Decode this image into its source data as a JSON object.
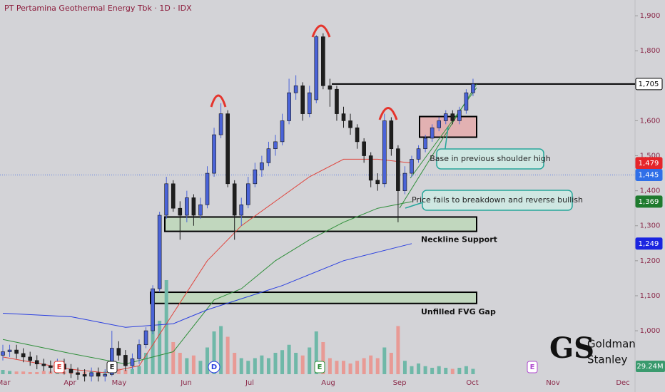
{
  "chart_data": {
    "type": "candlestick",
    "title": "PT Pertamina Geothermal Energy Tbk · 1D · IDX",
    "x_labels": [
      "Mar",
      "Apr",
      "May",
      "Jun",
      "Jul",
      "Aug",
      "Sep",
      "Oct",
      "Nov",
      "Dec"
    ],
    "ylim": [
      825,
      1945
    ],
    "yticks": [
      {
        "value": 1000,
        "label": "1,000"
      },
      {
        "value": 1100,
        "label": "1,100"
      },
      {
        "value": 1200,
        "label": "1,200"
      },
      {
        "value": 1300,
        "label": "1,300"
      },
      {
        "value": 1400,
        "label": "1,400"
      },
      {
        "value": 1500,
        "label": "1,500"
      },
      {
        "value": 1600,
        "label": "1,600"
      },
      {
        "value": 1700,
        "label": "1,700"
      },
      {
        "value": 1800,
        "label": "1,800"
      },
      {
        "value": 1900,
        "label": "1,900"
      }
    ],
    "up_color": "#4a63d8",
    "down_color": "#1e1e1e",
    "open": [
      930,
      940,
      945,
      935,
      925,
      915,
      905,
      900,
      895,
      905,
      890,
      880,
      875,
      870,
      880,
      870,
      875,
      950,
      930,
      900,
      920,
      960,
      1000,
      1120,
      1330,
      1420,
      1350,
      1330,
      1380,
      1330,
      1360,
      1450,
      1560,
      1620,
      1420,
      1330,
      1360,
      1420,
      1460,
      1480,
      1520,
      1540,
      1600,
      1680,
      1700,
      1620,
      1660,
      1840,
      1700,
      1690,
      1620,
      1600,
      1580,
      1540,
      1500,
      1430,
      1420,
      1600,
      1520,
      1400,
      1450,
      1490,
      1520,
      1550,
      1580,
      1600,
      1620,
      1600,
      1630,
      1680
    ],
    "high": [
      960,
      960,
      960,
      950,
      940,
      930,
      920,
      915,
      920,
      920,
      905,
      895,
      890,
      895,
      895,
      890,
      1000,
      970,
      945,
      935,
      975,
      1010,
      1130,
      1340,
      1440,
      1430,
      1370,
      1400,
      1390,
      1380,
      1470,
      1580,
      1650,
      1630,
      1430,
      1380,
      1440,
      1480,
      1500,
      1540,
      1560,
      1620,
      1720,
      1730,
      1710,
      1700,
      1845,
      1850,
      1720,
      1700,
      1640,
      1620,
      1590,
      1550,
      1510,
      1450,
      1620,
      1610,
      1530,
      1470,
      1500,
      1530,
      1560,
      1590,
      1610,
      1630,
      1630,
      1640,
      1690,
      1720
    ],
    "low": [
      915,
      925,
      920,
      910,
      900,
      890,
      885,
      880,
      880,
      875,
      865,
      860,
      855,
      855,
      855,
      855,
      870,
      915,
      885,
      890,
      905,
      950,
      990,
      1110,
      1320,
      1340,
      1260,
      1310,
      1300,
      1320,
      1350,
      1440,
      1550,
      1410,
      1260,
      1300,
      1350,
      1410,
      1440,
      1470,
      1500,
      1530,
      1590,
      1660,
      1600,
      1610,
      1650,
      1690,
      1640,
      1600,
      1580,
      1560,
      1520,
      1480,
      1410,
      1400,
      1410,
      1500,
      1310,
      1390,
      1440,
      1480,
      1510,
      1540,
      1570,
      1590,
      1590,
      1590,
      1620,
      1670
    ],
    "close": [
      940,
      945,
      935,
      925,
      915,
      905,
      900,
      895,
      905,
      890,
      880,
      875,
      870,
      880,
      870,
      875,
      950,
      930,
      900,
      920,
      960,
      1000,
      1120,
      1330,
      1420,
      1350,
      1330,
      1380,
      1330,
      1360,
      1450,
      1560,
      1620,
      1420,
      1330,
      1360,
      1420,
      1460,
      1480,
      1520,
      1540,
      1600,
      1680,
      1700,
      1620,
      1680,
      1840,
      1700,
      1690,
      1620,
      1600,
      1580,
      1540,
      1500,
      1430,
      1420,
      1600,
      1520,
      1400,
      1450,
      1490,
      1520,
      1550,
      1580,
      1600,
      1620,
      1600,
      1630,
      1680,
      1705
    ],
    "volume": [
      8,
      6,
      5,
      5,
      4,
      4,
      6,
      5,
      4,
      5,
      5,
      4,
      4,
      5,
      4,
      5,
      25,
      10,
      8,
      10,
      15,
      40,
      110,
      100,
      176,
      60,
      40,
      30,
      35,
      25,
      50,
      80,
      90,
      70,
      40,
      30,
      25,
      30,
      35,
      30,
      40,
      45,
      55,
      40,
      35,
      50,
      80,
      60,
      30,
      25,
      25,
      20,
      25,
      30,
      35,
      30,
      50,
      40,
      90,
      25,
      15,
      20,
      15,
      12,
      15,
      12,
      10,
      12,
      15,
      10
    ],
    "volume_ylim": [
      0,
      200
    ],
    "volume_up_color": "#6fb8a8",
    "volume_down_color": "#e89a95",
    "last_volume_label": "29.24M",
    "series": [
      {
        "color": "#e0443c",
        "x": [
          0,
          10,
          15,
          20,
          25,
          30,
          35,
          40,
          45,
          50,
          55,
          60
        ],
        "values": [
          925,
          890,
          880,
          900,
          1050,
          1200,
          1300,
          1370,
          1440,
          1490,
          1490,
          1479
        ]
      },
      {
        "color": "#2f8f3a",
        "x": [
          0,
          10,
          18,
          25,
          31,
          35,
          40,
          45,
          50,
          55,
          60
        ],
        "values": [
          975,
          935,
          905,
          940,
          1088,
          1120,
          1200,
          1260,
          1310,
          1350,
          1369
        ]
      },
      {
        "color": "#2a3fe0",
        "x": [
          0,
          10,
          18,
          25,
          30,
          41,
          50,
          60
        ],
        "values": [
          1050,
          1040,
          1010,
          1020,
          1060,
          1129,
          1200,
          1249
        ]
      }
    ],
    "price_labels": [
      {
        "value": 1705,
        "label": "1,705",
        "color": "#ffffff",
        "text_color": "#000000"
      },
      {
        "value": 1479,
        "label": "1,479",
        "color": "#e5252a",
        "text_color": "#ffffff"
      },
      {
        "value": 1445,
        "label": "1,445",
        "color": "#2f6fe8",
        "text_color": "#ffffff"
      },
      {
        "value": 1369,
        "label": "1,369",
        "color": "#1e7a2e",
        "text_color": "#ffffff"
      },
      {
        "value": 1249,
        "label": "1,249",
        "color": "#1a24e0",
        "text_color": "#ffffff"
      }
    ],
    "zones": [
      {
        "label": "Neckline Support",
        "range": [
          1284,
          1325
        ]
      },
      {
        "label": "Unfilled FVG Gap",
        "range": [
          1078,
          1110
        ]
      }
    ],
    "base_zone": [
      1553,
      1612
    ],
    "annotations": [
      "Base in previous shoulder high",
      "Price fails to breakdown and reverse bullish"
    ],
    "event_labels": [
      "E",
      "E",
      "D",
      "E",
      "E"
    ],
    "logo": {
      "mark": "GS",
      "line1": "Goldman",
      "line2": "Stanley"
    }
  }
}
